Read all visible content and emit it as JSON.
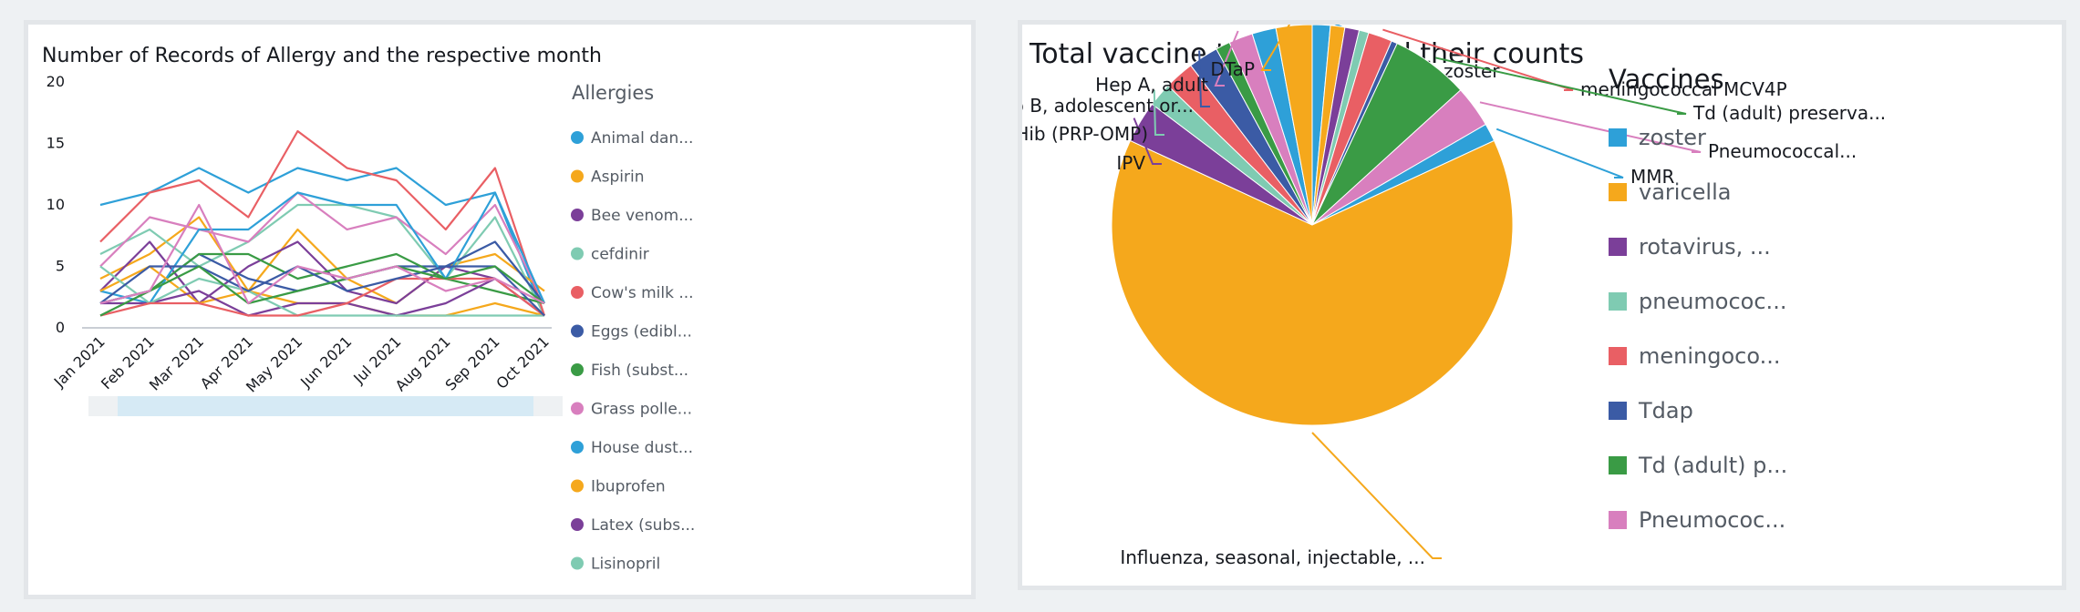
{
  "left_chart": {
    "title": "Number of Records of Allergy and the respective month",
    "legend_title": "Allergies"
  },
  "right_chart": {
    "title": "Total vaccine type used and their counts",
    "legend_title": "Vaccines"
  },
  "chart_data": [
    {
      "type": "line",
      "title": "Number of Records of Allergy and the respective month",
      "categories": [
        "Jan 2021",
        "Feb 2021",
        "Mar 2021",
        "Apr 2021",
        "May 2021",
        "Jun 2021",
        "Jul 2021",
        "Aug 2021",
        "Sep 2021",
        "Oct 2021"
      ],
      "ylim": [
        0,
        20
      ],
      "yticks": [
        0,
        5,
        10,
        15,
        20
      ],
      "grid": false,
      "legend": "right",
      "legend_title": "Allergies",
      "series": [
        {
          "name": "Animal dan...",
          "color": "#2ea0d8",
          "values": [
            10,
            11,
            13,
            11,
            13,
            12,
            13,
            10,
            11,
            1
          ]
        },
        {
          "name": "Aspirin",
          "color": "#f5a81c",
          "values": [
            4,
            6,
            9,
            3,
            8,
            4,
            2,
            5,
            6,
            3
          ]
        },
        {
          "name": "Bee venom...",
          "color": "#7b3f99",
          "values": [
            3,
            7,
            2,
            5,
            7,
            3,
            2,
            5,
            4,
            1
          ]
        },
        {
          "name": "cefdinir",
          "color": "#7fcbb2",
          "values": [
            6,
            8,
            5,
            7,
            10,
            10,
            9,
            4,
            9,
            1
          ]
        },
        {
          "name": "Cow's milk ...",
          "color": "#e95f64",
          "values": [
            7,
            11,
            12,
            9,
            16,
            13,
            12,
            8,
            13,
            1
          ]
        },
        {
          "name": "Eggs (edibl...",
          "color": "#3b5ba5",
          "values": [
            2,
            3,
            6,
            4,
            3,
            4,
            5,
            5,
            7,
            2
          ]
        },
        {
          "name": "Fish (subst...",
          "color": "#3a9b45",
          "values": [
            2,
            3,
            6,
            6,
            4,
            5,
            6,
            4,
            3,
            2
          ]
        },
        {
          "name": "Grass polle...",
          "color": "#d87fbe",
          "values": [
            5,
            9,
            8,
            7,
            11,
            8,
            9,
            6,
            10,
            2
          ]
        },
        {
          "name": "House dust...",
          "color": "#2ea0d8",
          "values": [
            3,
            2,
            8,
            8,
            11,
            10,
            10,
            4,
            11,
            2
          ]
        },
        {
          "name": "Ibuprofen",
          "color": "#f5a81c",
          "values": [
            3,
            5,
            2,
            3,
            2,
            2,
            1,
            1,
            2,
            1
          ]
        },
        {
          "name": "Latex (subs...",
          "color": "#7b3f99",
          "values": [
            2,
            2,
            3,
            1,
            2,
            2,
            1,
            2,
            4,
            1
          ]
        },
        {
          "name": "Lisinopril",
          "color": "#7fcbb2",
          "values": [
            5,
            2,
            4,
            3,
            1,
            1,
            1,
            1,
            1,
            1
          ]
        },
        {
          "name": "",
          "color": "#e95f64",
          "values": [
            1,
            2,
            2,
            1,
            1,
            2,
            4,
            4,
            4,
            1
          ]
        },
        {
          "name": "",
          "color": "#3b5ba5",
          "values": [
            2,
            5,
            5,
            3,
            5,
            3,
            4,
            5,
            5,
            1
          ]
        },
        {
          "name": "",
          "color": "#3a9b45",
          "values": [
            1,
            3,
            5,
            2,
            3,
            4,
            5,
            4,
            5,
            2
          ]
        },
        {
          "name": "",
          "color": "#d87fbe",
          "values": [
            2,
            3,
            10,
            2,
            5,
            4,
            5,
            3,
            4,
            2
          ]
        }
      ]
    },
    {
      "type": "pie",
      "title": "Total vaccine type used and their counts",
      "legend": "right",
      "legend_title": "Vaccines",
      "legend_entries": [
        {
          "label": "zoster",
          "color": "#2ea0d8"
        },
        {
          "label": "varicella",
          "color": "#f5a81c"
        },
        {
          "label": "rotavirus, ...",
          "color": "#7b3f99"
        },
        {
          "label": "pneumococ...",
          "color": "#7fcbb2"
        },
        {
          "label": "meningoco...",
          "color": "#e95f64"
        },
        {
          "label": "Tdap",
          "color": "#3b5ba5"
        },
        {
          "label": "Td (adult) p...",
          "color": "#3a9b45"
        },
        {
          "label": "Pneumococ...",
          "color": "#d87fbe"
        }
      ],
      "slices": [
        {
          "label": "zoster",
          "value": 1.5,
          "color": "#2ea0d8"
        },
        {
          "label": "",
          "value": 1.2,
          "color": "#f5a81c"
        },
        {
          "label": "",
          "value": 1.2,
          "color": "#7b3f99"
        },
        {
          "label": "",
          "value": 0.8,
          "color": "#7fcbb2"
        },
        {
          "label": "meningococcal MCV4P",
          "value": 2.0,
          "color": "#e95f64"
        },
        {
          "label": "",
          "value": 0.5,
          "color": "#3b5ba5"
        },
        {
          "label": "Td (adult) preserva...",
          "value": 6.5,
          "color": "#3a9b45"
        },
        {
          "label": "Pneumococcal...",
          "value": 3.5,
          "color": "#d87fbe"
        },
        {
          "label": "MMR",
          "value": 1.5,
          "color": "#2ea0d8"
        },
        {
          "label": "Influenza, seasonal, injectable, ...",
          "value": 66,
          "color": "#f5a81c"
        },
        {
          "label": "IPV",
          "value": 3.5,
          "color": "#7b3f99"
        },
        {
          "label": "Hib (PRP-OMP)",
          "value": 2.0,
          "color": "#7fcbb2"
        },
        {
          "label": "",
          "value": 2.5,
          "color": "#e95f64"
        },
        {
          "label": "Hep B, adolescent or...",
          "value": 2.5,
          "color": "#3b5ba5"
        },
        {
          "label": "",
          "value": 1.2,
          "color": "#3a9b45"
        },
        {
          "label": "Hep A, adult",
          "value": 2.0,
          "color": "#d87fbe"
        },
        {
          "label": "",
          "value": 2.0,
          "color": "#2ea0d8"
        },
        {
          "label": "DTaP",
          "value": 3.0,
          "color": "#f5a81c"
        }
      ]
    }
  ]
}
